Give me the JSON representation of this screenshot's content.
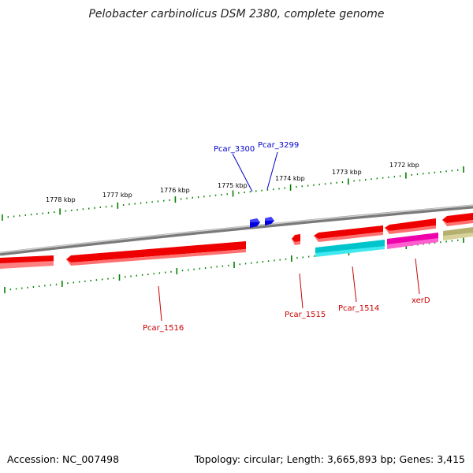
{
  "title": "Pelobacter carbinolicus DSM 2380, complete genome",
  "footer": {
    "accession": "Accession: NC_007498",
    "topology": "Topology: circular; Length: 3,665,893 bp; Genes: 3,415"
  },
  "colors": {
    "forward_gene": "#0000e0",
    "reverse_gene": "#ee0000",
    "cyan_gene": "#00c4cc",
    "magenta_gene": "#ee00aa",
    "olive_gene": "#b5b070",
    "tick": "#008000",
    "backbone": "#888888",
    "forward_label": "#0000cc",
    "reverse_label": "#cc0000"
  },
  "ruler": {
    "labels": [
      "1778 kbp",
      "1777 kbp",
      "1776 kbp",
      "1775 kbp",
      "1774 kbp",
      "1773 kbp",
      "1772 kbp"
    ]
  },
  "forward_genes": [
    {
      "name": "Pcar_3300"
    },
    {
      "name": "Pcar_3299"
    }
  ],
  "reverse_genes": [
    {
      "name": "Pcar_1516"
    },
    {
      "name": "Pcar_1515"
    },
    {
      "name": "Pcar_1514"
    },
    {
      "name": "xerD"
    }
  ]
}
